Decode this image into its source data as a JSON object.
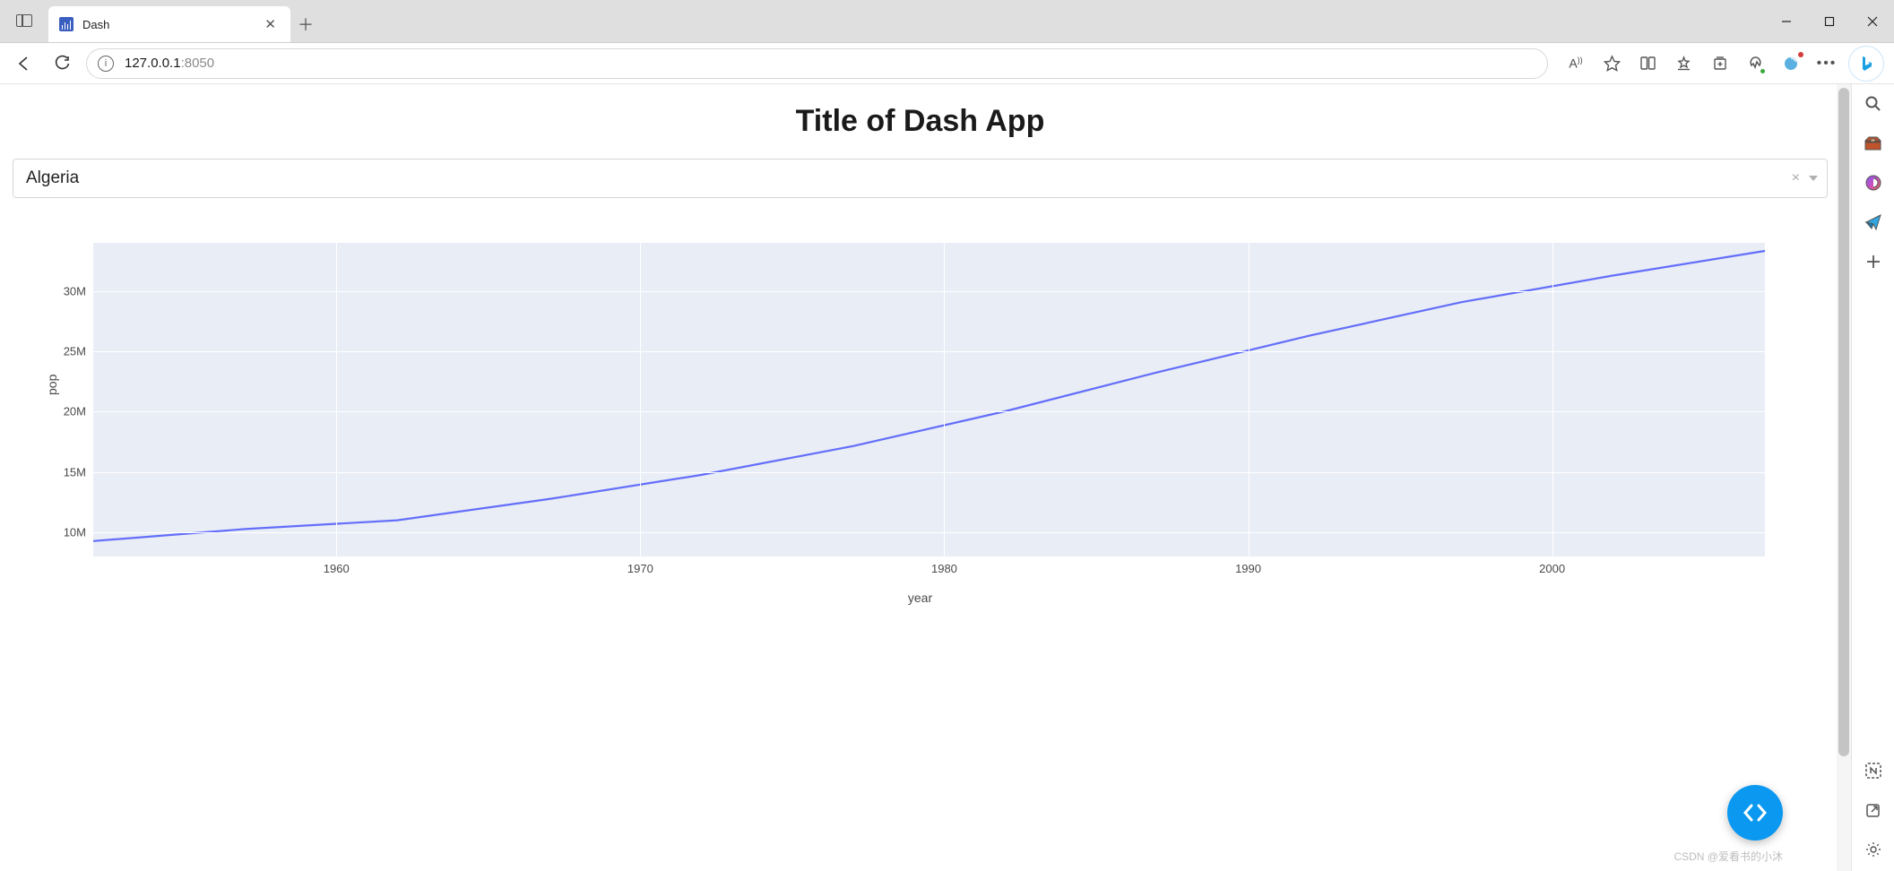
{
  "browser": {
    "tab_title": "Dash",
    "url_host": "127.0.0.1",
    "url_port": ":8050"
  },
  "page": {
    "title": "Title of Dash App",
    "dropdown_value": "Algeria"
  },
  "chart": {
    "type": "line",
    "xlabel": "year",
    "ylabel": "pop",
    "line_color": "#636efa",
    "plot_bg": "#e9edf6",
    "grid_color": "#ffffff",
    "xlim": [
      1952,
      2007
    ],
    "ylim": [
      8000000,
      34000000
    ],
    "xticks": [
      1960,
      1970,
      1980,
      1990,
      2000
    ],
    "yticks": [
      10000000,
      15000000,
      20000000,
      25000000,
      30000000
    ],
    "ytick_labels": [
      "10M",
      "15M",
      "20M",
      "25M",
      "30M"
    ],
    "x": [
      1952,
      1957,
      1962,
      1967,
      1972,
      1977,
      1982,
      1987,
      1992,
      1997,
      2002,
      2007
    ],
    "y": [
      9279525,
      10270856,
      11000948,
      12760499,
      14760787,
      17152804,
      20033753,
      23254956,
      26298373,
      29072015,
      31287142,
      33333216
    ]
  },
  "watermark": "CSDN @爱看书的小沐"
}
